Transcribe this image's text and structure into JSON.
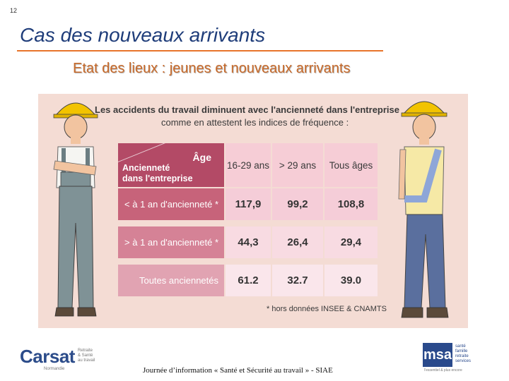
{
  "slide": {
    "number": "12",
    "title": "Cas des nouveaux arrivants",
    "subtitle": "Etat des lieux : jeunes et nouveaux arrivants"
  },
  "infographic": {
    "heading_line1": "Les accidents du travail diminuent avec l'ancienneté dans l'entreprise",
    "heading_line2": "comme en attestent les indices de fréquence :",
    "corner_top": "Âge",
    "corner_bottom_line1": "Ancienneté",
    "corner_bottom_line2": "dans l'entreprise",
    "columns": [
      "16-29 ans",
      "> 29 ans",
      "Tous âges"
    ],
    "rows": [
      {
        "label": "< à 1 an d'ancienneté *",
        "values": [
          "117,9",
          "99,2",
          "108,8"
        ]
      },
      {
        "label": "> à 1 an d'ancienneté *",
        "values": [
          "44,3",
          "26,4",
          "29,4"
        ]
      },
      {
        "label": "Toutes anciennetés",
        "values": [
          "61.2",
          "32.7",
          "39.0"
        ]
      }
    ],
    "footnote": "* hors données INSEE & CNAMTS"
  },
  "footer": {
    "text": "Journée d’information « Santé et Sécurité au travail » -  SIAE"
  },
  "logos": {
    "left_brand": "Carsat",
    "left_side_lines": [
      "Retraite",
      "& Santé",
      "au travail"
    ],
    "left_region": "Normandie",
    "right_mark": "msa",
    "right_lines": [
      "santé",
      "famille",
      "retraite",
      "services"
    ],
    "right_tag": "l'essentiel & plus encore"
  },
  "colors": {
    "title": "#1f3d7a",
    "accent_rule": "#e8742a",
    "subtitle": "#c86a2a",
    "panel_bg": "#f4dcd4",
    "header_dark": "#b34a66"
  },
  "icons": {
    "left_figure": "construction-worker-icon",
    "right_figure": "injured-worker-icon"
  }
}
